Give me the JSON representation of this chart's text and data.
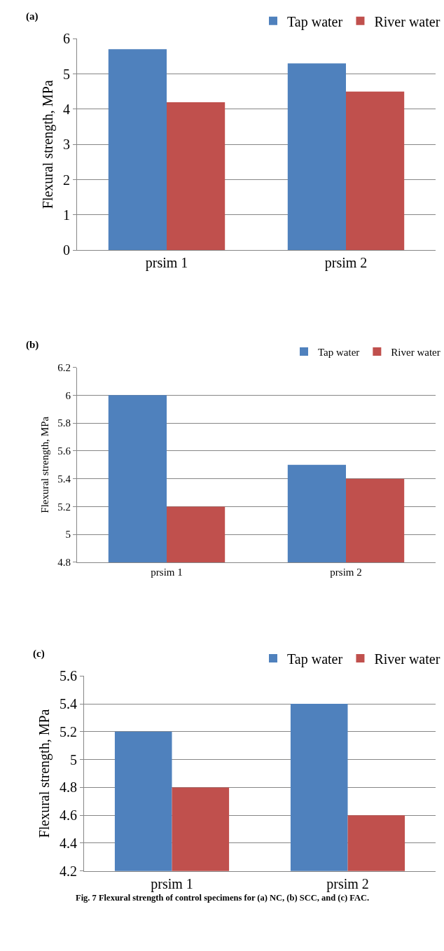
{
  "chart_data": [
    {
      "type": "bar",
      "title": "(a)",
      "ylabel": "Flexural strength, MPa",
      "categories": [
        "prsim 1",
        "prsim 2"
      ],
      "series": [
        {
          "name": "Tap water",
          "color": "#4f81bd",
          "values": [
            5.7,
            5.3
          ]
        },
        {
          "name": "River water",
          "color": "#c0504d",
          "values": [
            4.2,
            4.5
          ]
        }
      ],
      "ylim": [
        0,
        6
      ],
      "yticks": [
        0,
        1,
        2,
        3,
        4,
        5,
        6
      ],
      "grid": "y",
      "legend": "top right"
    },
    {
      "type": "bar",
      "title": "(b)",
      "ylabel": "Flexural strength, MPa",
      "categories": [
        "prsim 1",
        "prsim 2"
      ],
      "series": [
        {
          "name": "Tap water",
          "color": "#4f81bd",
          "values": [
            6.0,
            5.5
          ]
        },
        {
          "name": "River water",
          "color": "#c0504d",
          "values": [
            5.2,
            5.4
          ]
        }
      ],
      "ylim": [
        4.8,
        6.2
      ],
      "yticks": [
        4.8,
        5,
        5.2,
        5.4,
        5.6,
        5.8,
        6,
        6.2
      ],
      "grid": "y",
      "legend": "top right"
    },
    {
      "type": "bar",
      "title": "(c)",
      "ylabel": "Flexural strength, MPa",
      "categories": [
        "prsim 1",
        "prsim 2"
      ],
      "series": [
        {
          "name": "Tap water",
          "color": "#4f81bd",
          "values": [
            5.2,
            5.4
          ]
        },
        {
          "name": "River water",
          "color": "#c0504d",
          "values": [
            4.8,
            4.6
          ]
        }
      ],
      "ylim": [
        4.2,
        5.6
      ],
      "yticks": [
        4.2,
        4.4,
        4.6,
        4.8,
        5,
        5.2,
        5.4,
        5.6
      ],
      "grid": "y",
      "legend": "top right",
      "annotations": [
        "Fig. 7 Flexural strength of control specimens for (a) NC, (b) SCC, and (c) FAC."
      ]
    }
  ]
}
